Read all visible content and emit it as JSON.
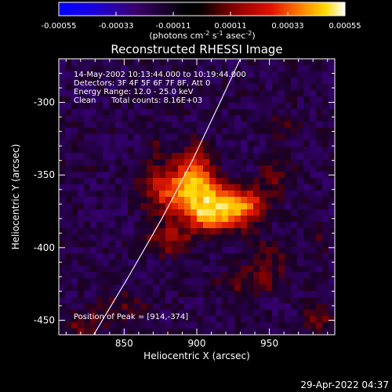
{
  "chart_data": {
    "type": "heatmap",
    "title": "Reconstructed RHESSI Image",
    "colorbar": {
      "ticks": [
        "-0.00055",
        "-0.00033",
        "-0.00011",
        "0.00011",
        "0.00033",
        "0.00055"
      ],
      "vmin": -0.00055,
      "vmax": 0.00055,
      "unit_base": "(photons cm",
      "unit_exp1": "-2",
      "unit_mid": " s",
      "unit_exp2": "-1",
      "unit_mid2": " asec",
      "unit_exp3": "-2",
      "unit_end": ")"
    },
    "x_axis": {
      "label": "Heliocentric X (arcsec)",
      "range": [
        805,
        995
      ],
      "ticks": [
        "850",
        "900",
        "950"
      ],
      "tick_values": [
        850,
        900,
        950
      ]
    },
    "y_axis": {
      "label": "Heliocentric Y (arcsec)",
      "range": [
        -460,
        -270
      ],
      "ticks": [
        "-300",
        "-350",
        "-400",
        "-450"
      ],
      "tick_values": [
        -300,
        -350,
        -400,
        -450
      ]
    },
    "annotations": {
      "time_range": "14-May-2002 10:13:44.000 to 10:19:44.000",
      "detectors": "Detectors: 3F 4F 5F 6F 7F 8F, Att 0",
      "energy": "Energy Range: 12.0 - 25.0 keV",
      "clean_label": "Clean",
      "total_counts": "Total counts: 8.16E+03",
      "peak": "Position of Peak = [914,-374]"
    },
    "peak": {
      "x": 914,
      "y": -374
    },
    "limb_arc": [
      {
        "x": 829,
        "y": -460
      },
      {
        "x": 853,
        "y": -420
      },
      {
        "x": 876,
        "y": -380
      },
      {
        "x": 897,
        "y": -340
      },
      {
        "x": 916,
        "y": -300
      },
      {
        "x": 930,
        "y": -270
      }
    ],
    "sources": [
      {
        "x": 912,
        "y": -374,
        "sx": 13,
        "sy": 10,
        "amp": 1.0
      },
      {
        "x": 885,
        "y": -360,
        "sx": 18,
        "sy": 12,
        "amp": 0.65
      },
      {
        "x": 900,
        "y": -345,
        "sx": 10,
        "sy": 16,
        "amp": 0.45
      },
      {
        "x": 935,
        "y": -372,
        "sx": 10,
        "sy": 9,
        "amp": 0.55
      },
      {
        "x": 880,
        "y": -395,
        "sx": 14,
        "sy": 9,
        "amp": 0.4
      },
      {
        "x": 955,
        "y": -350,
        "sx": 10,
        "sy": 14,
        "amp": 0.3
      },
      {
        "x": 950,
        "y": -405,
        "sx": 14,
        "sy": 10,
        "amp": 0.28
      },
      {
        "x": 935,
        "y": -425,
        "sx": 20,
        "sy": 8,
        "amp": 0.3
      },
      {
        "x": 960,
        "y": -315,
        "sx": 12,
        "sy": 8,
        "amp": 0.2
      },
      {
        "x": 850,
        "y": -440,
        "sx": 18,
        "sy": 9,
        "amp": 0.25
      },
      {
        "x": 820,
        "y": -455,
        "sx": 12,
        "sy": 7,
        "amp": 0.3
      },
      {
        "x": 985,
        "y": -450,
        "sx": 10,
        "sy": 8,
        "amp": 0.35
      },
      {
        "x": 870,
        "y": -330,
        "sx": 8,
        "sy": 8,
        "amp": 0.2
      },
      {
        "x": 985,
        "y": -395,
        "sx": 8,
        "sy": 10,
        "amp": 0.2
      }
    ]
  },
  "footer": {
    "timestamp": "29-Apr-2022 04:37"
  }
}
